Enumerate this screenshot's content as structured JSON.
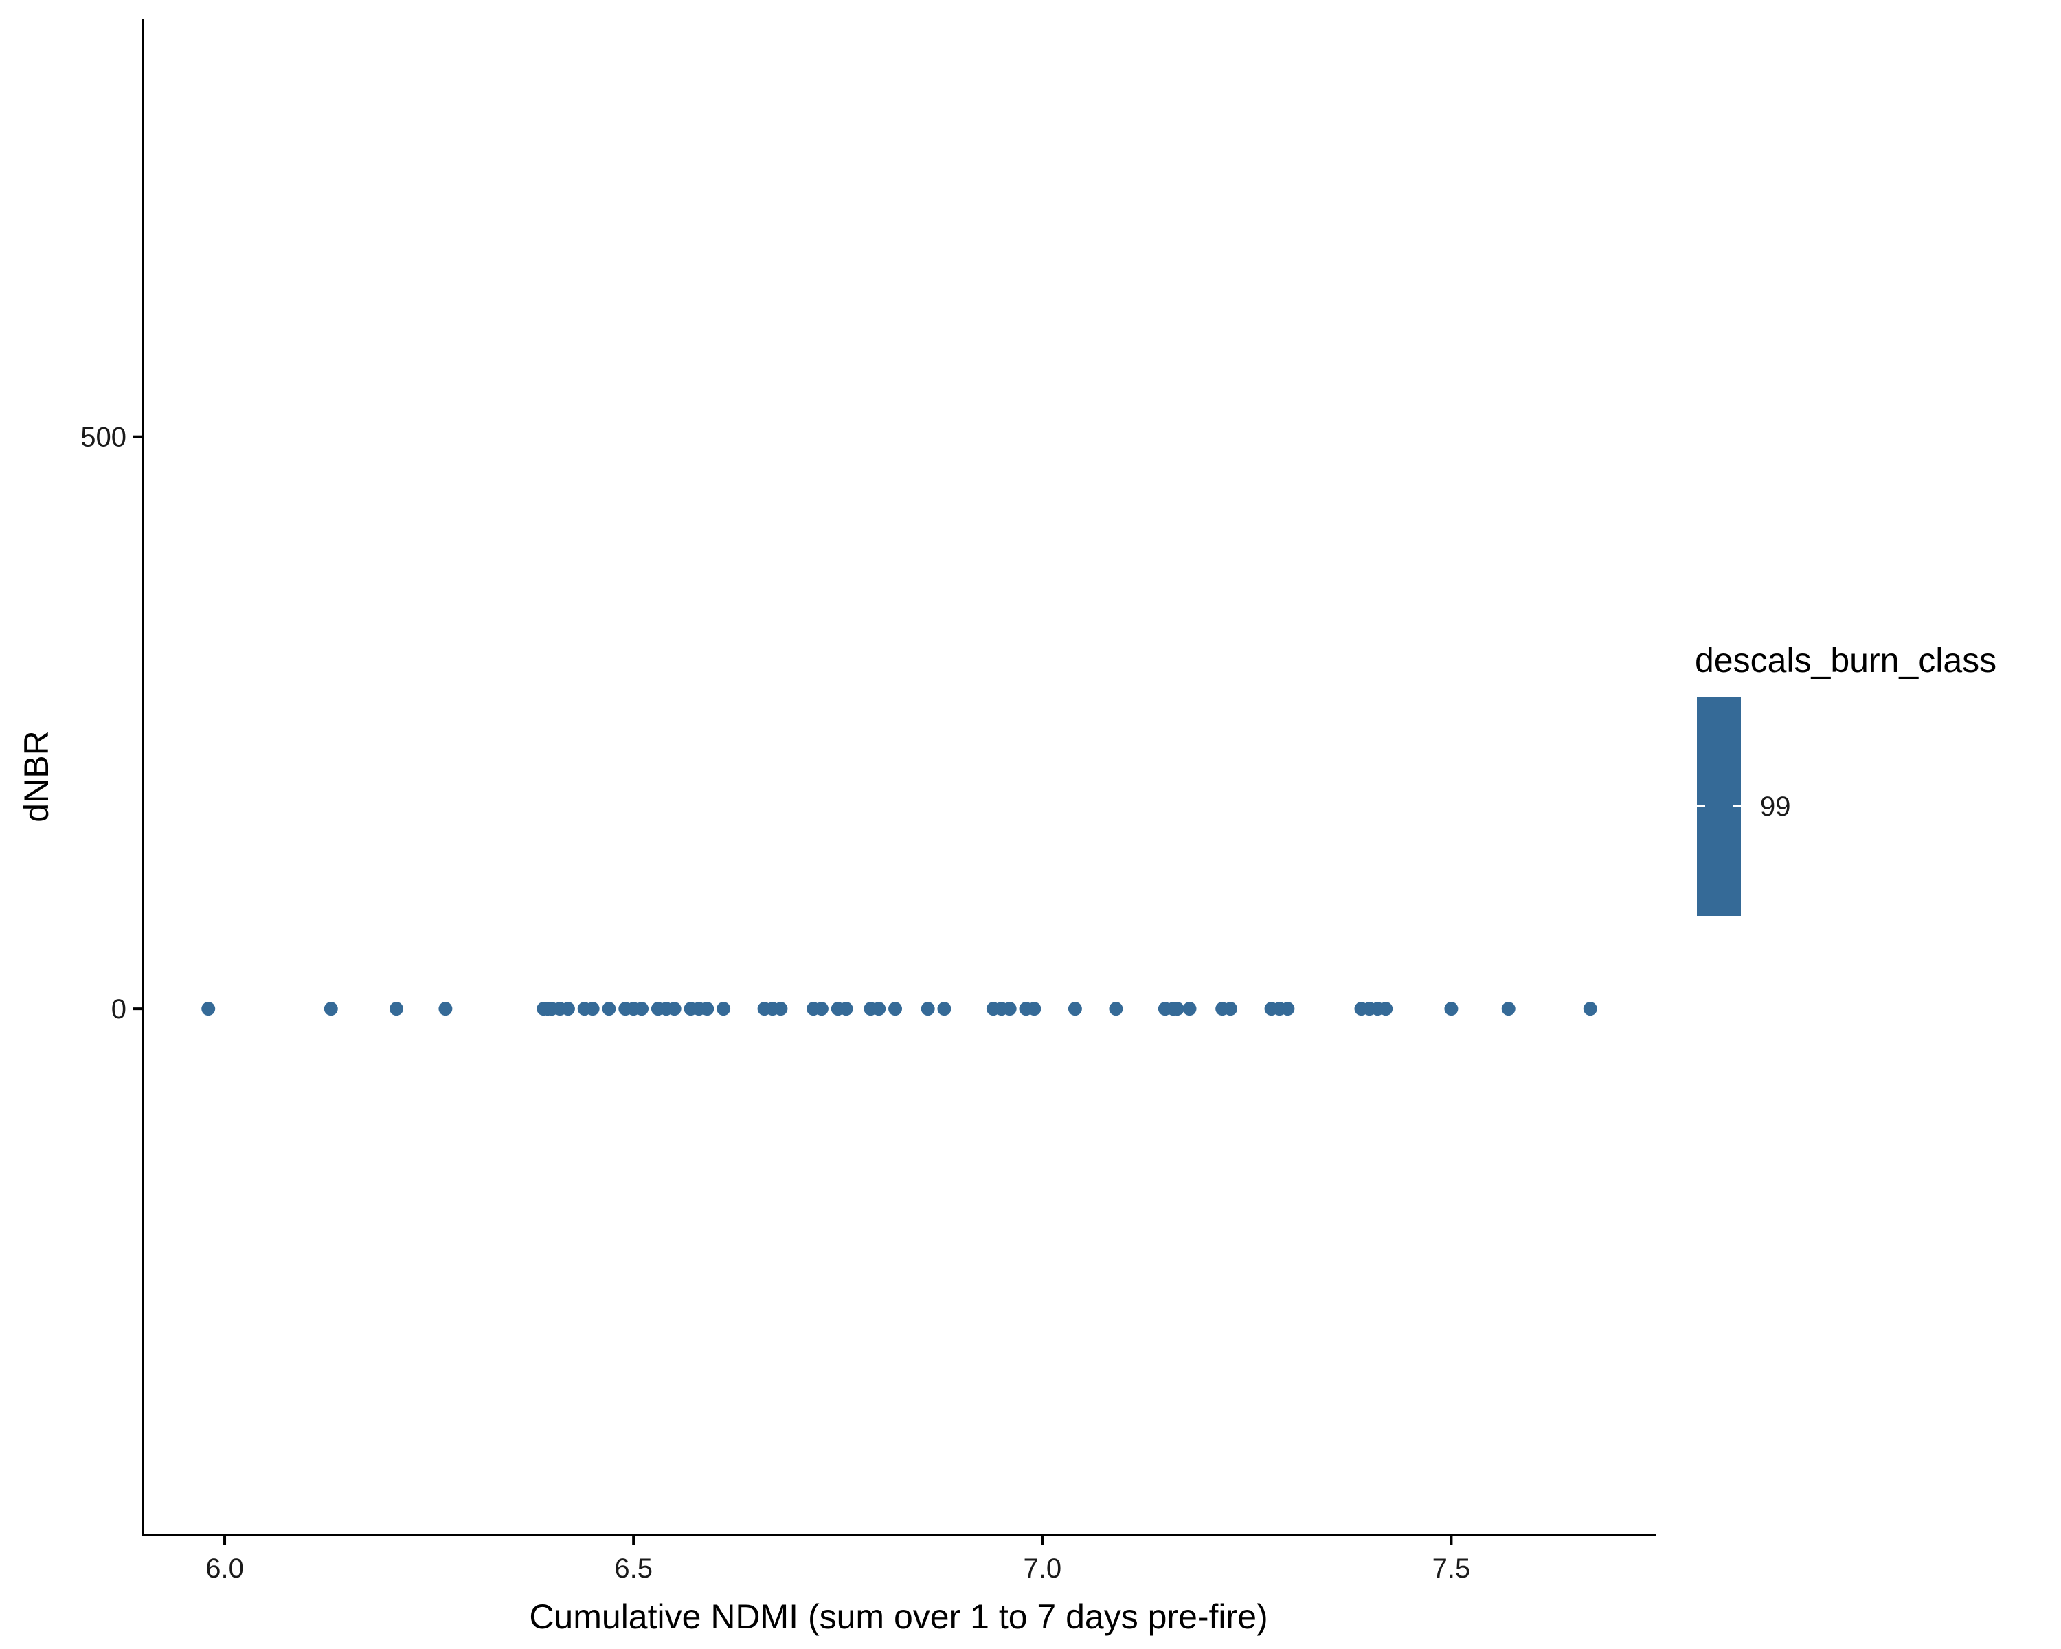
{
  "chart_data": {
    "type": "scatter",
    "xlabel": "Cumulative NDMI (sum over 1 to 7 days pre-fire)",
    "ylabel": "dNBR",
    "xlim": [
      5.9,
      7.75
    ],
    "ylim": [
      -460,
      865
    ],
    "x_ticks": [
      6.0,
      6.5,
      7.0,
      7.5
    ],
    "x_tick_labels": [
      "6.0",
      "6.5",
      "7.0",
      "7.5"
    ],
    "y_ticks": [
      0,
      500
    ],
    "y_tick_labels": [
      "0",
      "500"
    ],
    "grid": false,
    "legend": {
      "title": "descals_burn_class",
      "position": "right",
      "type": "colorbar",
      "labels": [
        "99"
      ]
    },
    "point_color": "#356A97",
    "series": [
      {
        "x": [
          5.98,
          6.13,
          6.21,
          6.27,
          6.39,
          6.395,
          6.4,
          6.41,
          6.42,
          6.44,
          6.45,
          6.47,
          6.49,
          6.5,
          6.51,
          6.53,
          6.54,
          6.55,
          6.57,
          6.58,
          6.59,
          6.61,
          6.66,
          6.67,
          6.68,
          6.72,
          6.73,
          6.75,
          6.76,
          6.79,
          6.8,
          6.82,
          6.86,
          6.88,
          6.94,
          6.95,
          6.96,
          6.98,
          6.99,
          7.04,
          7.09,
          7.15,
          7.16,
          7.165,
          7.18,
          7.22,
          7.23,
          7.28,
          7.29,
          7.3,
          7.39,
          7.4,
          7.41,
          7.42,
          7.5,
          7.57,
          7.67
        ],
        "y": [
          0,
          0,
          0,
          0,
          0,
          0,
          0,
          0,
          0,
          0,
          0,
          0,
          0,
          0,
          0,
          0,
          0,
          0,
          0,
          0,
          0,
          0,
          0,
          0,
          0,
          0,
          0,
          0,
          0,
          0,
          0,
          0,
          0,
          0,
          0,
          0,
          0,
          0,
          0,
          0,
          0,
          0,
          0,
          0,
          0,
          0,
          0,
          0,
          0,
          0,
          0,
          0,
          0,
          0,
          0,
          0,
          0
        ]
      }
    ]
  }
}
